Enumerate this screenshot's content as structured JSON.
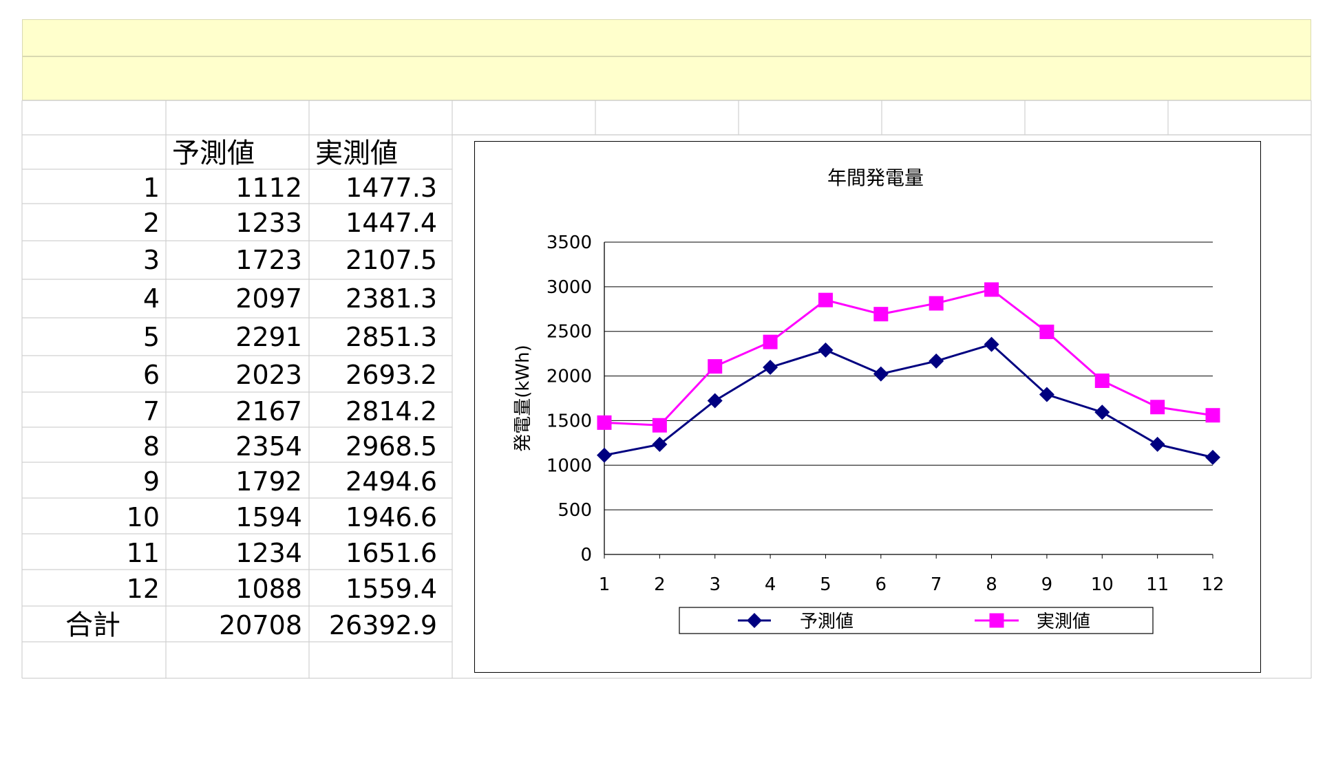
{
  "table": {
    "headers": [
      "予測値",
      "実測値"
    ],
    "rows": [
      {
        "month": "1",
        "forecast": "1112",
        "actual": "1477.3"
      },
      {
        "month": "2",
        "forecast": "1233",
        "actual": "1447.4"
      },
      {
        "month": "3",
        "forecast": "1723",
        "actual": "2107.5"
      },
      {
        "month": "4",
        "forecast": "2097",
        "actual": "2381.3"
      },
      {
        "month": "5",
        "forecast": "2291",
        "actual": "2851.3"
      },
      {
        "month": "6",
        "forecast": "2023",
        "actual": "2693.2"
      },
      {
        "month": "7",
        "forecast": "2167",
        "actual": "2814.2"
      },
      {
        "month": "8",
        "forecast": "2354",
        "actual": "2968.5"
      },
      {
        "month": "9",
        "forecast": "1792",
        "actual": "2494.6"
      },
      {
        "month": "10",
        "forecast": "1594",
        "actual": "1946.6"
      },
      {
        "month": "11",
        "forecast": "1234",
        "actual": "1651.6"
      },
      {
        "month": "12",
        "forecast": "1088",
        "actual": "1559.4"
      }
    ],
    "total": {
      "label": "合計",
      "forecast": "20708",
      "actual": "26392.9"
    }
  },
  "chart_data": {
    "type": "line",
    "title": "年間発電量",
    "xlabel": "",
    "ylabel": "発電量(kWh)",
    "categories": [
      "1",
      "2",
      "3",
      "4",
      "5",
      "6",
      "7",
      "8",
      "9",
      "10",
      "11",
      "12"
    ],
    "ylim": [
      0,
      3500
    ],
    "yticks": [
      0,
      500,
      1000,
      1500,
      2000,
      2500,
      3000,
      3500
    ],
    "grid": true,
    "legend": "bottom",
    "series": [
      {
        "name": "予測値",
        "color": "#000080",
        "marker": "diamond",
        "values": [
          1112,
          1233,
          1723,
          2097,
          2291,
          2023,
          2167,
          2354,
          1792,
          1594,
          1234,
          1088
        ]
      },
      {
        "name": "実測値",
        "color": "#ff00ff",
        "marker": "square",
        "values": [
          1477.3,
          1447.4,
          2107.5,
          2381.3,
          2851.3,
          2693.2,
          2814.2,
          2968.5,
          2494.6,
          1946.6,
          1651.6,
          1559.4
        ]
      }
    ]
  }
}
